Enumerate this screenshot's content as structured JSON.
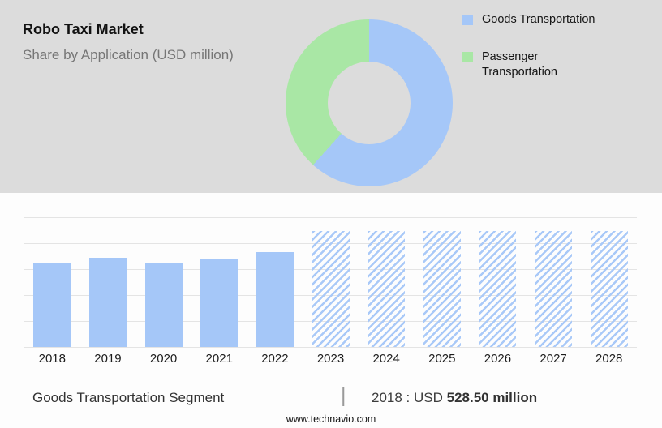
{
  "header": {
    "title": "Robo Taxi Market",
    "subtitle": "Share by Application (USD million)"
  },
  "colors": {
    "accent_blue": "#a5c7f8",
    "accent_green": "#a9e7a5",
    "top_background": "#dcdcdc",
    "gridline": "#e4e4e4"
  },
  "chart_data": [
    {
      "type": "pie",
      "title": "Share by Application (USD million)",
      "donut": true,
      "labels": [
        "Goods Transportation",
        "Passenger Transportation"
      ],
      "values_pct": [
        61.7,
        38.3
      ],
      "colors": [
        "#a5c7f8",
        "#a9e7a5"
      ],
      "legend_position": "right"
    },
    {
      "type": "bar",
      "title": "Robo Taxi Market size by year (USD million)",
      "categories": [
        "2018",
        "2019",
        "2020",
        "2021",
        "2022",
        "2023",
        "2024",
        "2025",
        "2026",
        "2027",
        "2028"
      ],
      "values": [
        528.5,
        565,
        535,
        555,
        600,
        735,
        735,
        735,
        735,
        735,
        735
      ],
      "styles": [
        "solid",
        "solid",
        "solid",
        "solid",
        "solid",
        "hatched",
        "hatched",
        "hatched",
        "hatched",
        "hatched",
        "hatched"
      ],
      "unit": "USD million",
      "grid": true,
      "ylim": [
        0,
        820
      ],
      "annotation": "2018 : USD 528.50 million"
    }
  ],
  "footer": {
    "segment_label": "Goods Transportation Segment",
    "separator": "|",
    "stat_prefix": "2018 : USD",
    "stat_value": "528.50 million",
    "website": "www.technavio.com"
  }
}
